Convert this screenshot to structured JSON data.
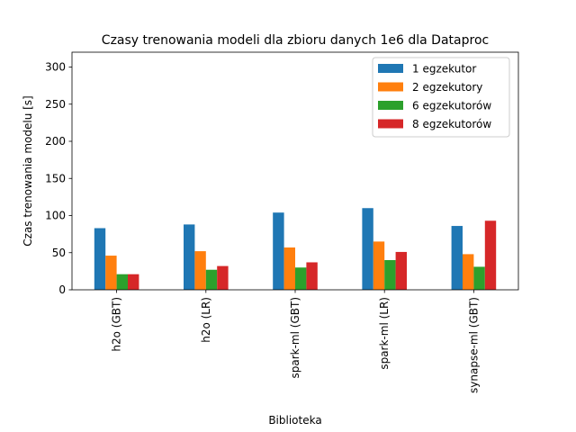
{
  "chart_data": {
    "type": "bar",
    "title": "Czasy trenowania modeli dla zbioru danych 1e6 dla Dataproc",
    "xlabel": "Biblioteka",
    "ylabel": "Czas trenowania modelu [s]",
    "categories": [
      "h2o (GBT)",
      "h2o (LR)",
      "spark-ml (GBT)",
      "spark-ml (LR)",
      "synapse-ml (GBT)"
    ],
    "ylim": [
      0,
      320
    ],
    "yticks": [
      0,
      50,
      100,
      150,
      200,
      250,
      300
    ],
    "grid": false,
    "legend_position": "top-right",
    "series": [
      {
        "name": "1 egzekutor",
        "color": "#1f77b4",
        "values": [
          83,
          88,
          104,
          110,
          86
        ]
      },
      {
        "name": "2 egzekutory",
        "color": "#ff7f0e",
        "values": [
          46,
          52,
          57,
          65,
          48
        ]
      },
      {
        "name": "6 egzekutorów",
        "color": "#2ca02c",
        "values": [
          21,
          27,
          30,
          40,
          31
        ]
      },
      {
        "name": "8 egzekutorów",
        "color": "#d62728",
        "values": [
          21,
          32,
          37,
          51,
          93
        ]
      }
    ]
  }
}
